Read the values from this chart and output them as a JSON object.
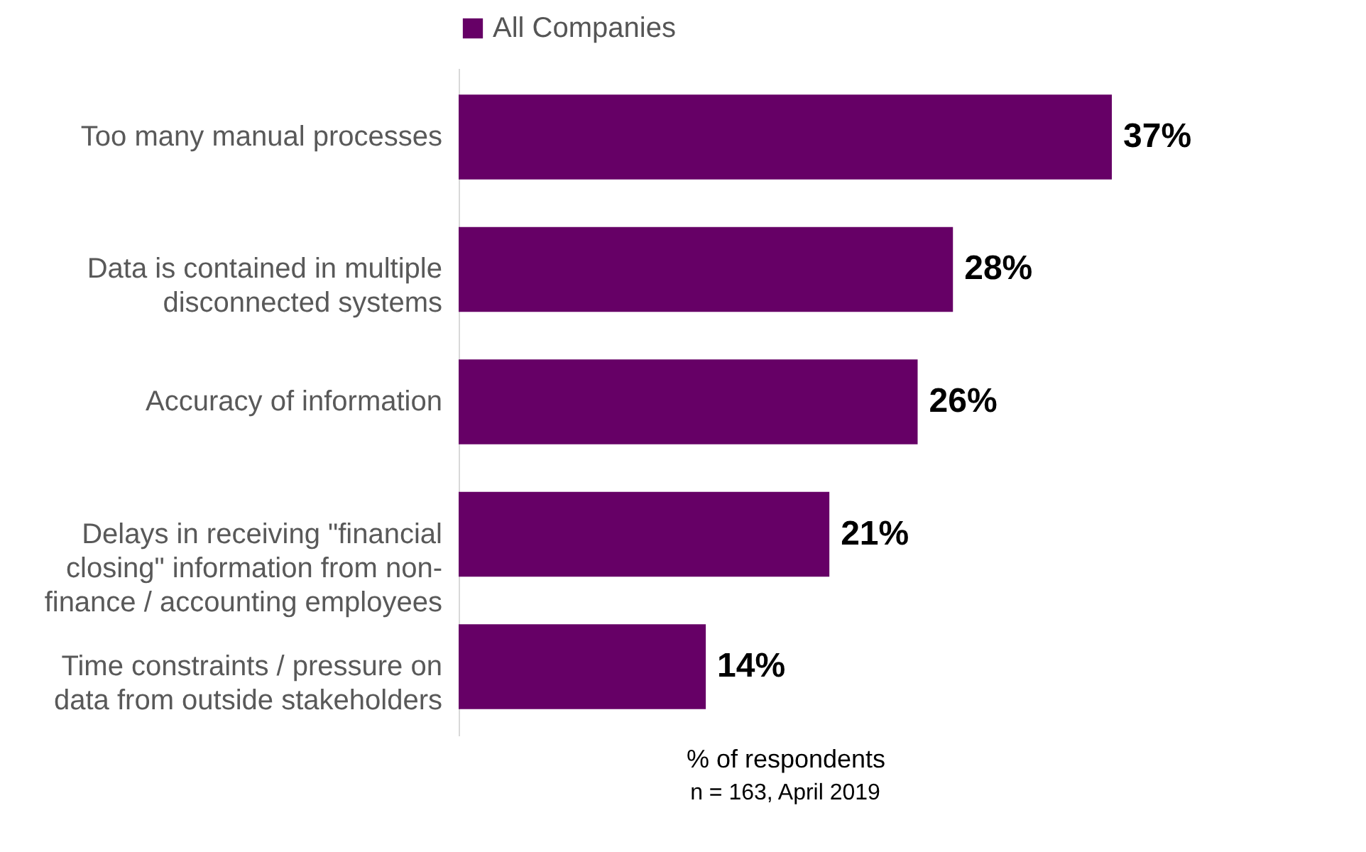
{
  "chart_data": {
    "type": "bar",
    "orientation": "horizontal",
    "categories": [
      "Too many manual processes",
      "Data is contained in multiple\ndisconnected systems",
      "Accuracy of information",
      "Delays in receiving \"financial\nclosing\" information from non-\nfinance / accounting employees",
      "Time constraints / pressure on\ndata from outside stakeholders"
    ],
    "series": [
      {
        "name": "All Companies",
        "color": "#660066",
        "values": [
          37,
          28,
          26,
          21,
          14
        ],
        "value_labels": [
          "37%",
          "28%",
          "26%",
          "21%",
          "14%"
        ]
      }
    ],
    "xlabel": "% of respondents",
    "legend": "top",
    "grid": false,
    "tick_labels": "y",
    "annotations": [
      "n = 163, April 2019"
    ]
  }
}
